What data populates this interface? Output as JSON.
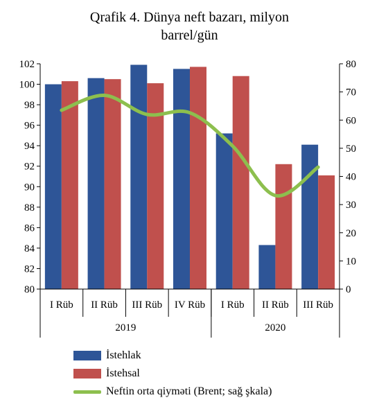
{
  "title_line1": "Qrafik 4. Dünya neft bazarı, milyon",
  "title_line2": "barrel/gün",
  "chart_data": {
    "type": "bar",
    "categories": [
      "I Rüb",
      "II Rüb",
      "III Rüb",
      "IV Rüb",
      "I Rüb",
      "II Rüb",
      "III Rüb"
    ],
    "groups": [
      {
        "label": "2019",
        "span": [
          0,
          3
        ]
      },
      {
        "label": "2020",
        "span": [
          4,
          6
        ]
      }
    ],
    "series": [
      {
        "name": "İstehlak",
        "type": "bar",
        "axis": "left",
        "color": "#2E5597",
        "values": [
          100.0,
          100.6,
          101.9,
          101.5,
          95.2,
          84.3,
          94.1
        ]
      },
      {
        "name": "İstehsal",
        "type": "bar",
        "axis": "left",
        "color": "#C0504D",
        "values": [
          100.3,
          100.5,
          100.1,
          101.7,
          100.8,
          92.2,
          91.1
        ]
      },
      {
        "name": "Neftin orta qiymәti (Brent; sağ şkala)",
        "type": "line",
        "axis": "right",
        "color": "#8DBF4E",
        "values": [
          63.5,
          68.8,
          62.0,
          62.6,
          50.8,
          33.2,
          43.3
        ]
      }
    ],
    "ylim_left": [
      80,
      102
    ],
    "yticks_left": [
      80,
      82,
      84,
      86,
      88,
      90,
      92,
      94,
      96,
      98,
      100,
      102
    ],
    "ylim_right": [
      0,
      80
    ],
    "yticks_right": [
      0,
      10,
      20,
      30,
      40,
      50,
      60,
      70,
      80
    ],
    "grid": false,
    "legend_position": "bottom"
  }
}
